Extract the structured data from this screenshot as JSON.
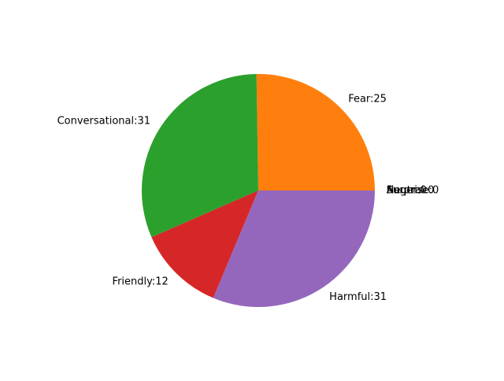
{
  "chart_data": {
    "type": "pie",
    "title": "",
    "start_angle_deg": 0,
    "direction": "counterclockwise",
    "label_separator": ":",
    "slices": [
      {
        "label": "Anger",
        "value": 0,
        "color": "#1f77b4"
      },
      {
        "label": "Fear",
        "value": 25,
        "color": "#ff7f0e"
      },
      {
        "label": "Conversational",
        "value": 31,
        "color": "#2ca02c"
      },
      {
        "label": "Friendly",
        "value": 12,
        "color": "#d62728"
      },
      {
        "label": "Harmful",
        "value": 31,
        "color": "#9467bd"
      },
      {
        "label": "Neutral",
        "value": 0,
        "color": "#8c564b"
      },
      {
        "label": "Surprise",
        "value": 0,
        "color": "#e377c2"
      }
    ]
  }
}
